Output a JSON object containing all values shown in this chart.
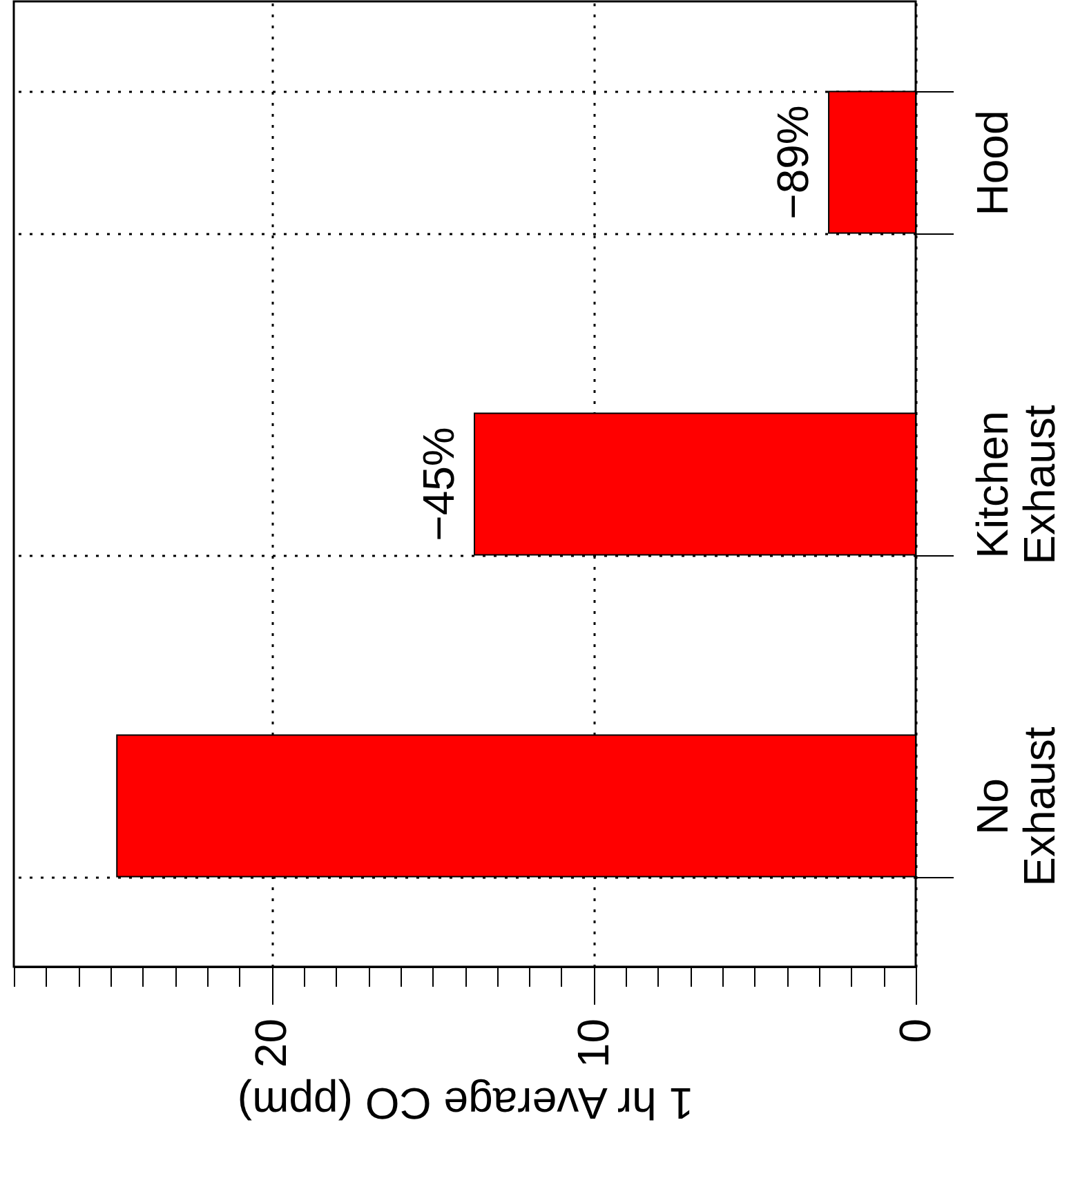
{
  "chart_data": {
    "type": "bar",
    "orientation": "horizontal",
    "categories": [
      "Hood",
      "Kitchen Exhaust",
      "No Exhaust"
    ],
    "values": [
      2.7,
      13.7,
      24.8
    ],
    "color": "#ff0000",
    "xlabel": "1 hr Average CO (ppm)",
    "xlim": [
      28,
      0
    ],
    "xticks": [
      {
        "value": 28,
        "label": null
      },
      {
        "value": 27,
        "label": null
      },
      {
        "value": 26,
        "label": null
      },
      {
        "value": 25,
        "label": null
      },
      {
        "value": 24,
        "label": null
      },
      {
        "value": 23,
        "label": null
      },
      {
        "value": 22,
        "label": null
      },
      {
        "value": 21,
        "label": null
      },
      20,
      {
        "value": 19,
        "label": null
      },
      {
        "value": 18,
        "label": null
      },
      {
        "value": 17,
        "label": null
      },
      {
        "value": 16,
        "label": null
      },
      {
        "value": 15,
        "label": null
      },
      {
        "value": 14,
        "label": null
      },
      {
        "value": 13,
        "label": null
      },
      {
        "value": 12,
        "label": null
      },
      {
        "value": 11,
        "label": null
      },
      10,
      {
        "value": 9,
        "label": null
      },
      {
        "value": 8,
        "label": null
      },
      {
        "value": 7,
        "label": null
      },
      {
        "value": 6,
        "label": null
      },
      {
        "value": 5,
        "label": null
      },
      {
        "value": 4,
        "label": null
      },
      {
        "value": 3,
        "label": null
      },
      {
        "value": 2,
        "label": null
      },
      {
        "value": 1,
        "label": null
      },
      0
    ],
    "grid": true,
    "annotations": [
      {
        "text": "−89%",
        "x": 2.7,
        "y": "Hood"
      },
      {
        "text": "−45%",
        "x": 13.7,
        "y": "Kitchen Exhaust"
      }
    ]
  }
}
